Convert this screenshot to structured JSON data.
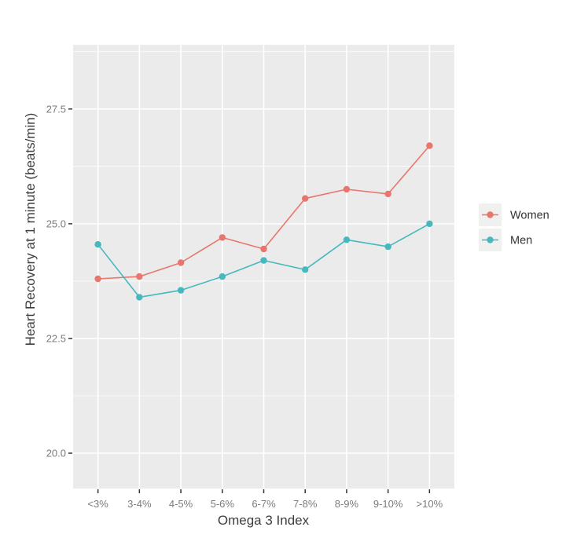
{
  "chart_data": {
    "type": "line",
    "title": "",
    "xlabel": "Omega 3 Index",
    "ylabel": "Heart Recovery at 1 minute (beats/min)",
    "categories": [
      "<3%",
      "3-4%",
      "4-5%",
      "5-6%",
      "6-7%",
      "7-8%",
      "8-9%",
      "9-10%",
      ">10%"
    ],
    "series": [
      {
        "name": "Women",
        "color": "#E8766D",
        "values": [
          23.8,
          23.85,
          24.15,
          24.7,
          24.45,
          25.55,
          25.75,
          25.65,
          26.7
        ]
      },
      {
        "name": "Men",
        "color": "#46B8BE",
        "values": [
          24.55,
          23.4,
          23.55,
          23.85,
          24.2,
          24.0,
          24.65,
          24.5,
          25.0
        ]
      }
    ],
    "ylim": [
      19.23,
      28.9
    ],
    "y_major_ticks": [
      20.0,
      22.5,
      25.0,
      27.5
    ],
    "y_tick_labels": [
      "20.0",
      "22.5",
      "25.0",
      "27.5"
    ],
    "y_minor_ticks": [
      21.25,
      23.75,
      26.25,
      28.75
    ],
    "grid": "major+minor, white on gray panel",
    "legend_position": "right",
    "marker": "filled-circle",
    "colors": {
      "panel_background": "#EBEBEB",
      "gridline": "#FFFFFF",
      "tick_mark": "#333333",
      "tick_label": "#7B7B7B",
      "axis_title": "#3D3D3D",
      "legend_text": "#333333",
      "legend_key_background": "#F0F0F0",
      "figure_background": "#FFFFFF"
    }
  }
}
